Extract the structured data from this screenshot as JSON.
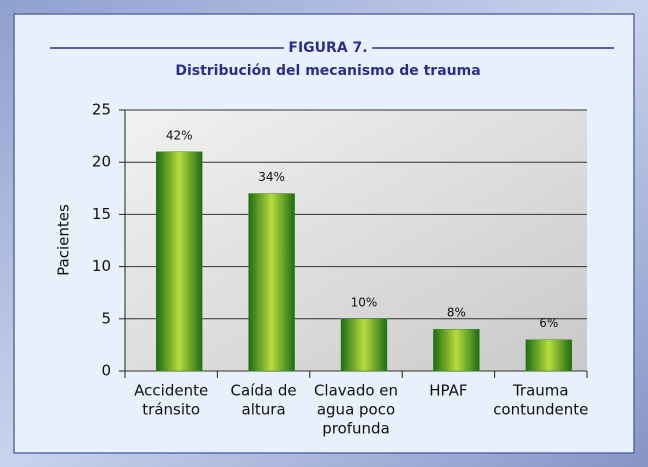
{
  "chart_data": {
    "type": "bar",
    "title": "FIGURA 7.",
    "subtitle": "Distribución del mecanismo de trauma",
    "y_label": "Pacientes",
    "categories": [
      [
        "Accidente",
        "tránsito"
      ],
      [
        "Caída de",
        "altura"
      ],
      [
        "Clavado en",
        "agua poco",
        "profunda"
      ],
      [
        "HPAF"
      ],
      [
        "Trauma",
        "contundente"
      ]
    ],
    "values": [
      21,
      17,
      5,
      4,
      3
    ],
    "percent_labels": [
      "42%",
      "34%",
      "10%",
      "8%",
      "6%"
    ],
    "color": "#3a8f1e",
    "ylim": [
      0,
      25
    ],
    "yticks": [
      0,
      5,
      10,
      15,
      20,
      25
    ],
    "grid": true
  }
}
